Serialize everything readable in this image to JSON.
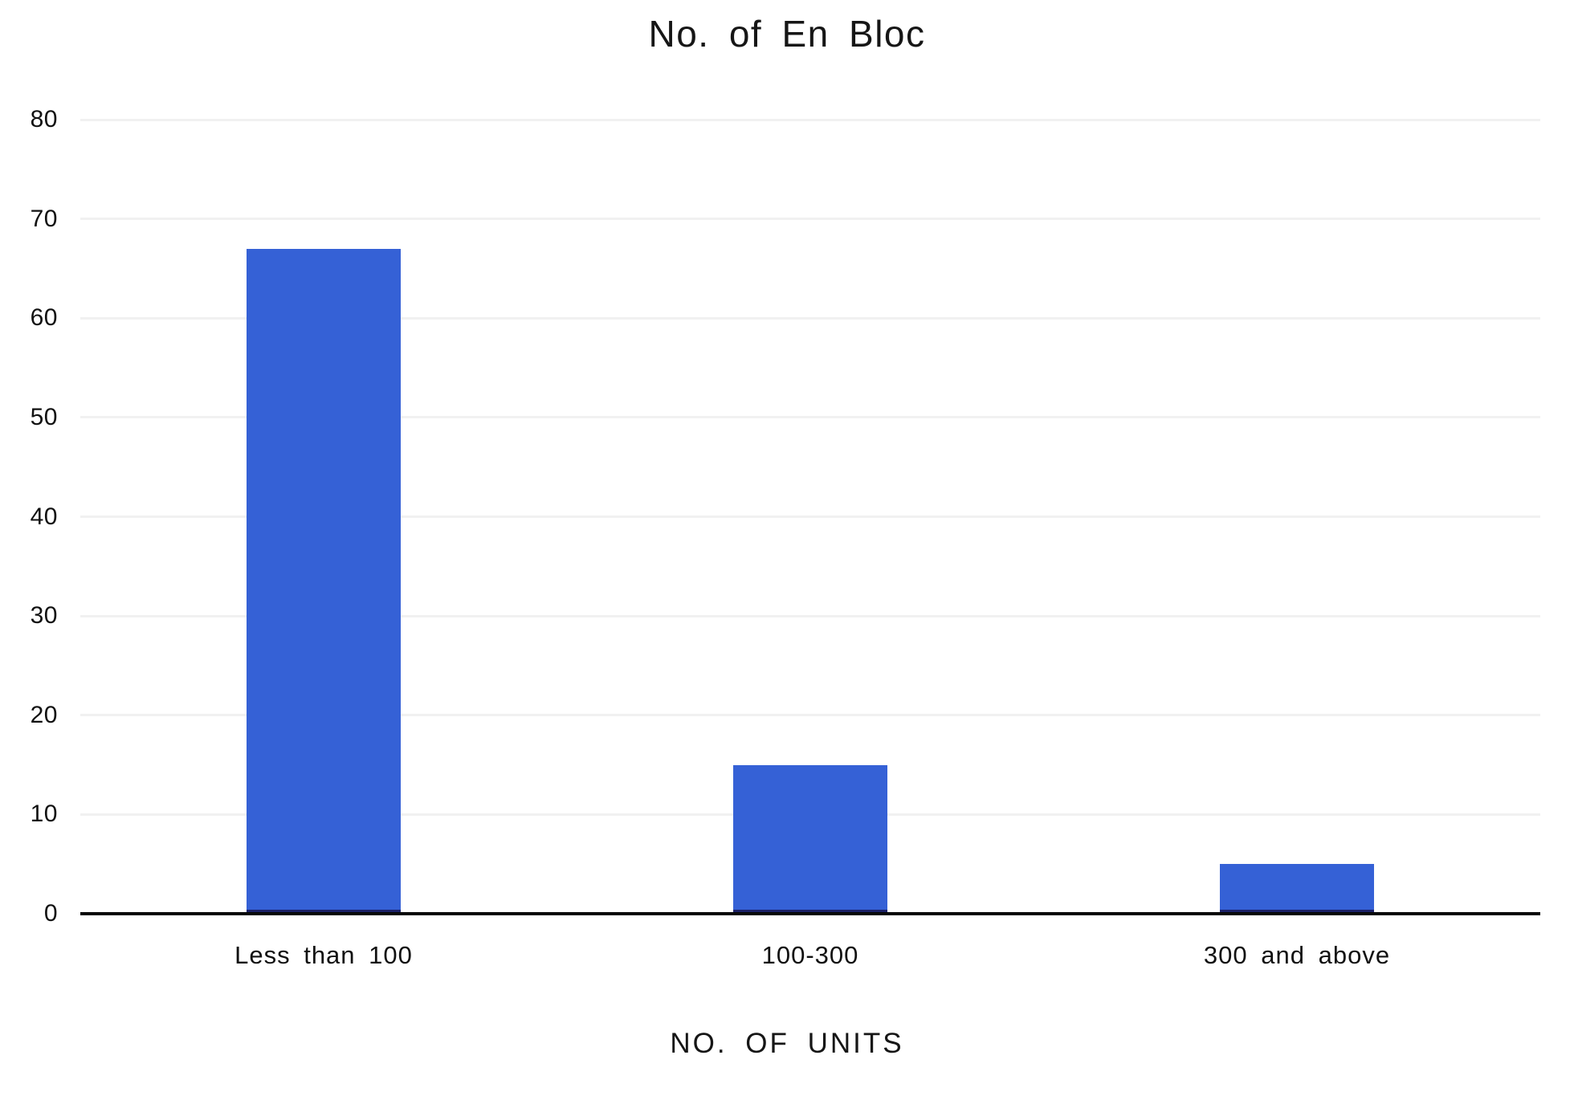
{
  "chart_data": {
    "type": "bar",
    "title": "No. of En Bloc",
    "xlabel": "NO. OF UNITS",
    "ylabel": "",
    "categories": [
      "Less than 100",
      "100-300",
      "300 and above"
    ],
    "values": [
      67,
      15,
      5
    ],
    "ylim": [
      0,
      80
    ],
    "ytick_step": 10,
    "ytick_labels": [
      "0",
      "10",
      "20",
      "30",
      "40",
      "50",
      "60",
      "70",
      "80"
    ],
    "grid": "horizontal",
    "legend": "none",
    "colors": {
      "bar": "#3561d6",
      "bar_bottom_edge": "#1b2167",
      "axis_line": "#070707",
      "gridline": "#f1f1f1",
      "text": "#1a1a1a"
    }
  }
}
